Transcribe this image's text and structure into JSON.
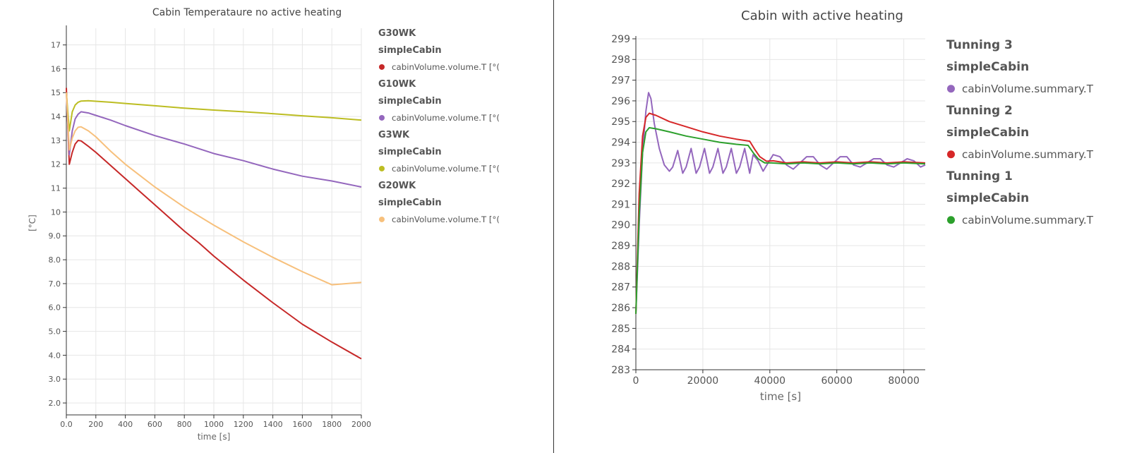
{
  "chart_data": [
    {
      "type": "line",
      "title": "Cabin Temperataure no active heating",
      "xlabel": "time [s]",
      "ylabel": "[°C]",
      "xlim": [
        0,
        2000
      ],
      "ylim": [
        1.5,
        17.7
      ],
      "grid": true,
      "legend_position": "right",
      "x_ticks": [
        0,
        200,
        400,
        600,
        800,
        1000,
        1200,
        1400,
        1600,
        1800,
        2000
      ],
      "x_tick_labels": [
        "0.0",
        "200",
        "400",
        "600",
        "800",
        "1000",
        "1200",
        "1400",
        "1600",
        "1800",
        "2000"
      ],
      "y_ticks": [
        2,
        3,
        4,
        5,
        6,
        7,
        8,
        9,
        10,
        11,
        12,
        13,
        14,
        15,
        16,
        17
      ],
      "y_tick_labels": [
        "2.0",
        "3.0",
        "4.0",
        "5.0",
        "6.0",
        "7.0",
        "8.0",
        "9.0",
        "10",
        "11",
        "12",
        "13",
        "14",
        "15",
        "16",
        "17"
      ],
      "legend": [
        {
          "group": "G30WK",
          "subgroup": "simpleCabin",
          "label": "cabinVolume.volume.T [°(",
          "color": "#c62828"
        },
        {
          "group": "G10WK",
          "subgroup": "simpleCabin",
          "label": "cabinVolume.volume.T [°(",
          "color": "#9467bd"
        },
        {
          "group": "G3WK",
          "subgroup": "simpleCabin",
          "label": "cabinVolume.volume.T [°(",
          "color": "#bcbd22"
        },
        {
          "group": "G20WK",
          "subgroup": "simpleCabin",
          "label": "cabinVolume.volume.T [°(",
          "color": "#f7c07c"
        }
      ],
      "series": [
        {
          "color": "#c62828",
          "x": [
            0,
            20,
            40,
            60,
            80,
            100,
            150,
            200,
            300,
            400,
            500,
            600,
            700,
            800,
            900,
            1000,
            1200,
            1400,
            1600,
            1800,
            2000
          ],
          "values": [
            15.2,
            12.0,
            12.5,
            12.85,
            13.0,
            12.98,
            12.75,
            12.5,
            11.95,
            11.4,
            10.85,
            10.3,
            9.75,
            9.2,
            8.7,
            8.15,
            7.15,
            6.2,
            5.3,
            4.55,
            3.85
          ]
        },
        {
          "color": "#9467bd",
          "x": [
            0,
            20,
            40,
            60,
            80,
            100,
            150,
            200,
            300,
            400,
            600,
            800,
            1000,
            1200,
            1400,
            1600,
            1800,
            2000
          ],
          "values": [
            15.0,
            12.4,
            13.4,
            13.9,
            14.1,
            14.2,
            14.15,
            14.05,
            13.85,
            13.62,
            13.2,
            12.85,
            12.45,
            12.15,
            11.8,
            11.5,
            11.3,
            11.05
          ]
        },
        {
          "color": "#bcbd22",
          "x": [
            0,
            20,
            40,
            60,
            80,
            100,
            150,
            200,
            300,
            400,
            600,
            800,
            1000,
            1200,
            1400,
            1600,
            1800,
            2000
          ],
          "values": [
            15.0,
            13.4,
            14.2,
            14.48,
            14.6,
            14.65,
            14.66,
            14.64,
            14.6,
            14.55,
            14.45,
            14.35,
            14.27,
            14.2,
            14.12,
            14.03,
            13.95,
            13.85
          ]
        },
        {
          "color": "#f7c07c",
          "x": [
            0,
            20,
            40,
            60,
            80,
            100,
            150,
            200,
            300,
            400,
            600,
            800,
            1000,
            1200,
            1400,
            1600,
            1800,
            2000
          ],
          "values": [
            15.0,
            12.6,
            13.1,
            13.4,
            13.55,
            13.57,
            13.4,
            13.15,
            12.55,
            12.0,
            11.05,
            10.2,
            9.45,
            8.75,
            8.1,
            7.5,
            6.95,
            7.05
          ]
        }
      ]
    },
    {
      "type": "line",
      "title": "Cabin with active heating",
      "xlabel": "time [s]",
      "ylabel": "",
      "xlim": [
        0,
        86400
      ],
      "ylim": [
        283,
        299
      ],
      "grid": true,
      "legend_position": "right",
      "x_ticks": [
        0,
        20000,
        40000,
        60000,
        80000
      ],
      "x_tick_labels": [
        "0",
        "20000",
        "40000",
        "60000",
        "80000"
      ],
      "y_ticks": [
        283,
        284,
        285,
        286,
        287,
        288,
        289,
        290,
        291,
        292,
        293,
        294,
        295,
        296,
        297,
        298,
        299
      ],
      "y_tick_labels": [
        "283",
        "284",
        "285",
        "286",
        "287",
        "288",
        "289",
        "290",
        "291",
        "292",
        "293",
        "294",
        "295",
        "296",
        "297",
        "298",
        "299"
      ],
      "legend": [
        {
          "group": "Tunning 3",
          "subgroup": "simpleCabin",
          "label": "cabinVolume.summary.T",
          "color": "#9467bd"
        },
        {
          "group": "Tunning 2",
          "subgroup": "simpleCabin",
          "label": "cabinVolume.summary.T",
          "color": "#d62728"
        },
        {
          "group": "Tunning 1",
          "subgroup": "simpleCabin",
          "label": "cabinVolume.summary.T",
          "color": "#2ca02c"
        }
      ],
      "series": [
        {
          "color": "#9467bd",
          "x": [
            0,
            1000,
            2000,
            3000,
            3800,
            4500,
            5500,
            7000,
            8500,
            10000,
            11000,
            12500,
            14000,
            15000,
            16500,
            18000,
            19000,
            20500,
            22000,
            23000,
            24500,
            26000,
            27000,
            28500,
            30000,
            31000,
            32500,
            34000,
            35000,
            36500,
            38000,
            39500,
            41000,
            43000,
            45000,
            47000,
            49000,
            51000,
            53000,
            55000,
            57000,
            59000,
            61000,
            63000,
            65000,
            67000,
            69000,
            71000,
            73000,
            75000,
            77000,
            79000,
            81000,
            83000,
            85000,
            86400
          ],
          "values": [
            285.7,
            290,
            293.5,
            295.5,
            296.4,
            296.1,
            294.9,
            293.7,
            292.9,
            292.6,
            292.8,
            293.6,
            292.5,
            292.8,
            293.7,
            292.5,
            292.8,
            293.7,
            292.5,
            292.8,
            293.7,
            292.5,
            292.8,
            293.7,
            292.5,
            292.8,
            293.7,
            292.5,
            293.4,
            293.1,
            292.6,
            293.0,
            293.4,
            293.3,
            292.9,
            292.7,
            293.0,
            293.3,
            293.3,
            292.9,
            292.7,
            293.0,
            293.3,
            293.3,
            292.9,
            292.8,
            293.0,
            293.2,
            293.2,
            292.9,
            292.8,
            293.0,
            293.2,
            293.1,
            292.8,
            292.9
          ]
        },
        {
          "color": "#d62728",
          "x": [
            0,
            1000,
            2000,
            3000,
            4000,
            6000,
            10000,
            15000,
            20000,
            25000,
            30000,
            34000,
            35500,
            37000,
            39000,
            41000,
            45000,
            50000,
            55000,
            60000,
            65000,
            70000,
            75000,
            80000,
            86400
          ],
          "values": [
            285.7,
            291.5,
            294.3,
            295.2,
            295.4,
            295.3,
            295.0,
            294.75,
            294.5,
            294.3,
            294.15,
            294.05,
            293.65,
            293.3,
            293.08,
            293.1,
            293.0,
            293.05,
            293.0,
            293.05,
            293.0,
            293.05,
            293.0,
            293.05,
            293.0
          ]
        },
        {
          "color": "#2ca02c",
          "x": [
            0,
            1000,
            2000,
            3000,
            4000,
            6000,
            10000,
            15000,
            20000,
            25000,
            30000,
            33500,
            35000,
            36500,
            38500,
            40500,
            45000,
            50000,
            55000,
            60000,
            65000,
            70000,
            75000,
            80000,
            86400
          ],
          "values": [
            285.7,
            290.5,
            293.5,
            294.5,
            294.7,
            294.65,
            294.5,
            294.3,
            294.15,
            294.0,
            293.9,
            293.85,
            293.5,
            293.2,
            293.0,
            293.0,
            292.95,
            293.0,
            292.95,
            293.0,
            292.95,
            293.0,
            292.95,
            293.0,
            292.95
          ]
        }
      ]
    }
  ]
}
